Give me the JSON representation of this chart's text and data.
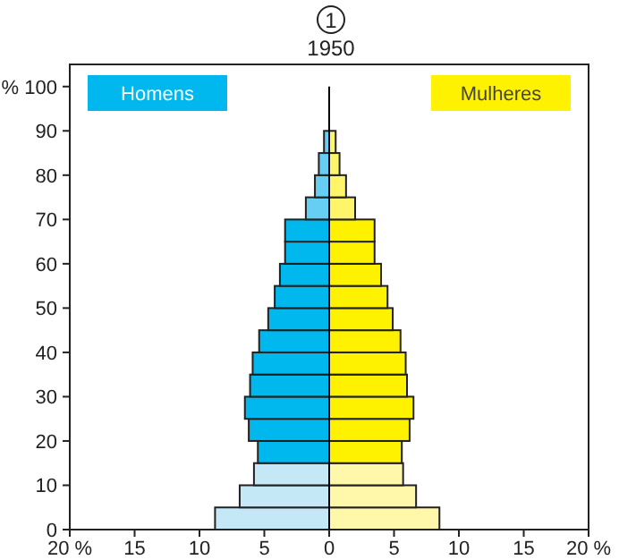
{
  "chart_data": {
    "type": "bar",
    "orientation": "horizontal",
    "title": "1950",
    "annotations": [
      "1"
    ],
    "x": [
      2.5,
      7.5,
      12.5,
      17.5,
      22.5,
      27.5,
      32.5,
      37.5,
      42.5,
      47.5,
      52.5,
      57.5,
      62.5,
      67.5,
      72.5,
      77.5,
      82.5,
      87.5
    ],
    "series": [
      {
        "name": "Homens",
        "color": "#00b7ee",
        "colors": [
          "#c5e8f7",
          "#c5e8f7",
          "#c5e8f7",
          "#00b7ee",
          "#00b7ee",
          "#00b7ee",
          "#00b7ee",
          "#00b7ee",
          "#00b7ee",
          "#00b7ee",
          "#00b7ee",
          "#00b7ee",
          "#00b7ee",
          "#00b7ee",
          "#66cdf3",
          "#66cdf3",
          "#66cdf3",
          "#66cdf3"
        ],
        "values": [
          -8.8,
          -6.9,
          -5.8,
          -5.5,
          -6.2,
          -6.5,
          -6.1,
          -5.9,
          -5.4,
          -4.7,
          -4.2,
          -3.8,
          -3.4,
          -3.4,
          -1.8,
          -1.1,
          -0.8,
          -0.4
        ]
      },
      {
        "name": "Mulheres",
        "color": "#fff200",
        "colors": [
          "#fff7aa",
          "#fff7aa",
          "#fff7aa",
          "#fff200",
          "#fff200",
          "#fff200",
          "#fff200",
          "#fff200",
          "#fff200",
          "#fff200",
          "#fff200",
          "#fff200",
          "#fff200",
          "#fff200",
          "#fff56a",
          "#fff56a",
          "#fff56a",
          "#fff56a"
        ],
        "values": [
          8.5,
          6.7,
          5.7,
          5.6,
          6.2,
          6.5,
          6.0,
          5.9,
          5.5,
          4.9,
          4.5,
          4.0,
          3.5,
          3.5,
          2.0,
          1.3,
          0.8,
          0.5
        ]
      }
    ],
    "xlim": [
      -20,
      20
    ],
    "xticks": [
      {
        "value": -20,
        "label": "20 %"
      },
      {
        "value": -15,
        "label": "15"
      },
      {
        "value": -10,
        "label": "10"
      },
      {
        "value": -5,
        "label": "5"
      },
      0,
      5,
      10,
      15,
      {
        "value": 20,
        "label": "20 %"
      }
    ],
    "ylim": [
      0,
      105
    ],
    "yticks": [
      0,
      10,
      20,
      30,
      40,
      50,
      60,
      70,
      80,
      90,
      {
        "value": 100,
        "label": "% 100"
      }
    ],
    "ref_lines": [
      {
        "axis": "x",
        "value": 0,
        "color": "#000000"
      }
    ],
    "legend": "top",
    "grid": false,
    "stacked": true
  }
}
